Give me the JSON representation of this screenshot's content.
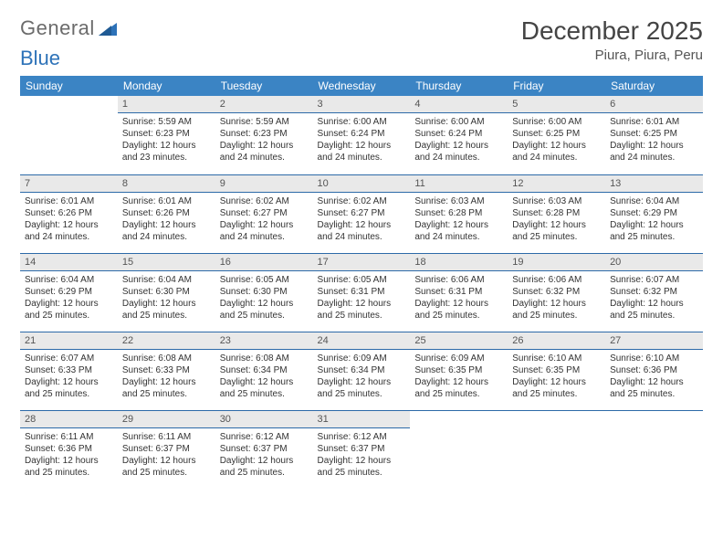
{
  "logo": {
    "word1": "General",
    "word2": "Blue"
  },
  "header": {
    "title": "December 2025",
    "location": "Piura, Piura, Peru"
  },
  "colors": {
    "header_bg": "#3b84c4",
    "daynum_bg": "#e9e9e9",
    "rule": "#2d6aa8",
    "logo_gray": "#6b6b6b",
    "logo_blue": "#2d72b8"
  },
  "weekdays": [
    "Sunday",
    "Monday",
    "Tuesday",
    "Wednesday",
    "Thursday",
    "Friday",
    "Saturday"
  ],
  "weeks": [
    [
      {
        "n": "",
        "sr": "",
        "ss": "",
        "dl": ""
      },
      {
        "n": "1",
        "sr": "5:59 AM",
        "ss": "6:23 PM",
        "dl": "12 hours and 23 minutes."
      },
      {
        "n": "2",
        "sr": "5:59 AM",
        "ss": "6:23 PM",
        "dl": "12 hours and 24 minutes."
      },
      {
        "n": "3",
        "sr": "6:00 AM",
        "ss": "6:24 PM",
        "dl": "12 hours and 24 minutes."
      },
      {
        "n": "4",
        "sr": "6:00 AM",
        "ss": "6:24 PM",
        "dl": "12 hours and 24 minutes."
      },
      {
        "n": "5",
        "sr": "6:00 AM",
        "ss": "6:25 PM",
        "dl": "12 hours and 24 minutes."
      },
      {
        "n": "6",
        "sr": "6:01 AM",
        "ss": "6:25 PM",
        "dl": "12 hours and 24 minutes."
      }
    ],
    [
      {
        "n": "7",
        "sr": "6:01 AM",
        "ss": "6:26 PM",
        "dl": "12 hours and 24 minutes."
      },
      {
        "n": "8",
        "sr": "6:01 AM",
        "ss": "6:26 PM",
        "dl": "12 hours and 24 minutes."
      },
      {
        "n": "9",
        "sr": "6:02 AM",
        "ss": "6:27 PM",
        "dl": "12 hours and 24 minutes."
      },
      {
        "n": "10",
        "sr": "6:02 AM",
        "ss": "6:27 PM",
        "dl": "12 hours and 24 minutes."
      },
      {
        "n": "11",
        "sr": "6:03 AM",
        "ss": "6:28 PM",
        "dl": "12 hours and 24 minutes."
      },
      {
        "n": "12",
        "sr": "6:03 AM",
        "ss": "6:28 PM",
        "dl": "12 hours and 25 minutes."
      },
      {
        "n": "13",
        "sr": "6:04 AM",
        "ss": "6:29 PM",
        "dl": "12 hours and 25 minutes."
      }
    ],
    [
      {
        "n": "14",
        "sr": "6:04 AM",
        "ss": "6:29 PM",
        "dl": "12 hours and 25 minutes."
      },
      {
        "n": "15",
        "sr": "6:04 AM",
        "ss": "6:30 PM",
        "dl": "12 hours and 25 minutes."
      },
      {
        "n": "16",
        "sr": "6:05 AM",
        "ss": "6:30 PM",
        "dl": "12 hours and 25 minutes."
      },
      {
        "n": "17",
        "sr": "6:05 AM",
        "ss": "6:31 PM",
        "dl": "12 hours and 25 minutes."
      },
      {
        "n": "18",
        "sr": "6:06 AM",
        "ss": "6:31 PM",
        "dl": "12 hours and 25 minutes."
      },
      {
        "n": "19",
        "sr": "6:06 AM",
        "ss": "6:32 PM",
        "dl": "12 hours and 25 minutes."
      },
      {
        "n": "20",
        "sr": "6:07 AM",
        "ss": "6:32 PM",
        "dl": "12 hours and 25 minutes."
      }
    ],
    [
      {
        "n": "21",
        "sr": "6:07 AM",
        "ss": "6:33 PM",
        "dl": "12 hours and 25 minutes."
      },
      {
        "n": "22",
        "sr": "6:08 AM",
        "ss": "6:33 PM",
        "dl": "12 hours and 25 minutes."
      },
      {
        "n": "23",
        "sr": "6:08 AM",
        "ss": "6:34 PM",
        "dl": "12 hours and 25 minutes."
      },
      {
        "n": "24",
        "sr": "6:09 AM",
        "ss": "6:34 PM",
        "dl": "12 hours and 25 minutes."
      },
      {
        "n": "25",
        "sr": "6:09 AM",
        "ss": "6:35 PM",
        "dl": "12 hours and 25 minutes."
      },
      {
        "n": "26",
        "sr": "6:10 AM",
        "ss": "6:35 PM",
        "dl": "12 hours and 25 minutes."
      },
      {
        "n": "27",
        "sr": "6:10 AM",
        "ss": "6:36 PM",
        "dl": "12 hours and 25 minutes."
      }
    ],
    [
      {
        "n": "28",
        "sr": "6:11 AM",
        "ss": "6:36 PM",
        "dl": "12 hours and 25 minutes."
      },
      {
        "n": "29",
        "sr": "6:11 AM",
        "ss": "6:37 PM",
        "dl": "12 hours and 25 minutes."
      },
      {
        "n": "30",
        "sr": "6:12 AM",
        "ss": "6:37 PM",
        "dl": "12 hours and 25 minutes."
      },
      {
        "n": "31",
        "sr": "6:12 AM",
        "ss": "6:37 PM",
        "dl": "12 hours and 25 minutes."
      },
      {
        "n": "",
        "sr": "",
        "ss": "",
        "dl": ""
      },
      {
        "n": "",
        "sr": "",
        "ss": "",
        "dl": ""
      },
      {
        "n": "",
        "sr": "",
        "ss": "",
        "dl": ""
      }
    ]
  ],
  "labels": {
    "sunrise": "Sunrise:",
    "sunset": "Sunset:",
    "daylight": "Daylight:"
  }
}
